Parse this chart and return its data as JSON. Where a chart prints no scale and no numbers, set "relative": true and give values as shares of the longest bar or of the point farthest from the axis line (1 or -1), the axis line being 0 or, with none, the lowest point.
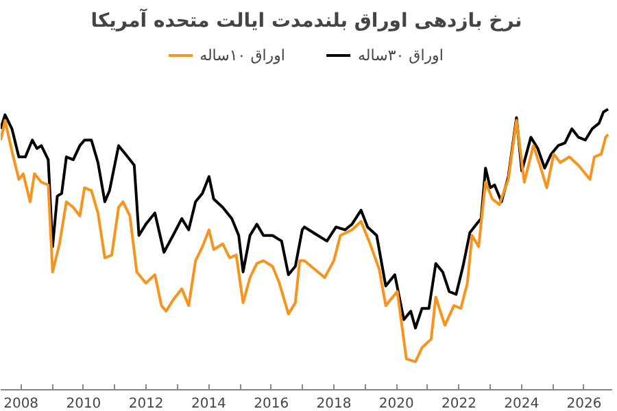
{
  "chart_data": {
    "type": "line",
    "title": "نرخ بازدهی اوراق بلندمدت ایالت متحده آمریکا",
    "relative": true,
    "legend": "top",
    "grid": false,
    "line_style": "solid",
    "xlim": [
      2007.35,
      2026.9
    ],
    "xticks": [
      2008,
      {
        "value": 2009,
        "label": null
      },
      2010,
      {
        "value": 2011,
        "label": null
      },
      2012,
      {
        "value": 2013,
        "label": null
      },
      2014,
      {
        "value": 2015,
        "label": null
      },
      2016,
      {
        "value": 2017,
        "label": null
      },
      2018,
      {
        "value": 2019,
        "label": null
      },
      2020,
      {
        "value": 2021,
        "label": null
      },
      2022,
      {
        "value": 2023,
        "label": null
      },
      2024,
      {
        "value": 2025,
        "label": null
      },
      2026
    ],
    "series": [
      {
        "name": "اوراق ۳۰ساله",
        "color": "#000000",
        "x": [
          2007.35,
          2007.49,
          2007.71,
          2007.93,
          2008.14,
          2008.36,
          2008.51,
          2008.65,
          2008.87,
          2009.01,
          2009.16,
          2009.3,
          2009.45,
          2009.67,
          2009.88,
          2010.03,
          2010.25,
          2010.46,
          2010.68,
          2010.83,
          2011.12,
          2011.41,
          2011.62,
          2011.77,
          2011.99,
          2012.28,
          2012.57,
          2012.86,
          2013.14,
          2013.36,
          2013.58,
          2013.8,
          2014.01,
          2014.16,
          2014.45,
          2014.74,
          2014.96,
          2015.1,
          2015.32,
          2015.54,
          2015.75,
          2016.04,
          2016.33,
          2016.55,
          2016.77,
          2016.99,
          2017.06,
          2017.49,
          2017.78,
          2018.07,
          2018.36,
          2018.58,
          2018.87,
          2019.08,
          2019.37,
          2019.66,
          2019.95,
          2020.24,
          2020.46,
          2020.61,
          2020.82,
          2021.04,
          2021.26,
          2021.48,
          2021.69,
          2021.91,
          2022.13,
          2022.35,
          2022.56,
          2022.71,
          2022.85,
          2023.0,
          2023.14,
          2023.36,
          2023.58,
          2023.84,
          2024.01,
          2024.3,
          2024.52,
          2024.74,
          2024.95,
          2025.17,
          2025.39,
          2025.61,
          2025.82,
          2026.04,
          2026.26,
          2026.48,
          2026.62,
          2026.77
        ],
        "values": [
          0.93,
          0.98,
          0.93,
          0.83,
          0.83,
          0.89,
          0.86,
          0.87,
          0.82,
          0.51,
          0.69,
          0.7,
          0.83,
          0.82,
          0.87,
          0.89,
          0.89,
          0.81,
          0.67,
          0.71,
          0.87,
          0.83,
          0.8,
          0.55,
          0.59,
          0.63,
          0.49,
          0.55,
          0.61,
          0.57,
          0.67,
          0.7,
          0.76,
          0.68,
          0.65,
          0.61,
          0.55,
          0.42,
          0.55,
          0.59,
          0.55,
          0.55,
          0.53,
          0.41,
          0.44,
          0.57,
          0.58,
          0.55,
          0.53,
          0.58,
          0.57,
          0.59,
          0.64,
          0.58,
          0.55,
          0.37,
          0.41,
          0.25,
          0.28,
          0.22,
          0.29,
          0.29,
          0.45,
          0.42,
          0.35,
          0.34,
          0.44,
          0.56,
          0.59,
          0.61,
          0.79,
          0.72,
          0.73,
          0.67,
          0.76,
          0.97,
          0.78,
          0.9,
          0.86,
          0.79,
          0.84,
          0.87,
          0.88,
          0.93,
          0.9,
          0.89,
          0.93,
          0.95,
          0.99,
          1.0
        ]
      },
      {
        "name": "اوراق ۱۰ساله",
        "color": "#f7941d",
        "x": [
          2007.35,
          2007.49,
          2007.71,
          2007.93,
          2008.07,
          2008.29,
          2008.43,
          2008.65,
          2008.87,
          2009.01,
          2009.23,
          2009.45,
          2009.67,
          2009.88,
          2010.03,
          2010.25,
          2010.46,
          2010.68,
          2010.9,
          2011.12,
          2011.26,
          2011.48,
          2011.7,
          2011.99,
          2012.28,
          2012.49,
          2012.64,
          2012.86,
          2013.14,
          2013.36,
          2013.58,
          2013.8,
          2014.01,
          2014.16,
          2014.45,
          2014.67,
          2014.88,
          2015.1,
          2015.32,
          2015.54,
          2015.75,
          2016.04,
          2016.26,
          2016.55,
          2016.77,
          2016.91,
          2017.06,
          2017.49,
          2017.71,
          2018.0,
          2018.21,
          2018.58,
          2018.87,
          2019.16,
          2019.45,
          2019.66,
          2020.03,
          2020.32,
          2020.61,
          2020.82,
          2021.11,
          2021.26,
          2021.55,
          2021.84,
          2022.06,
          2022.27,
          2022.42,
          2022.63,
          2022.85,
          2023.07,
          2023.29,
          2023.58,
          2023.84,
          2024.09,
          2024.38,
          2024.59,
          2024.81,
          2025.03,
          2025.24,
          2025.53,
          2025.82,
          2026.19,
          2026.33,
          2026.55,
          2026.69,
          2026.77
        ],
        "values": [
          0.89,
          0.96,
          0.85,
          0.75,
          0.77,
          0.67,
          0.77,
          0.74,
          0.73,
          0.42,
          0.52,
          0.67,
          0.65,
          0.62,
          0.72,
          0.71,
          0.63,
          0.47,
          0.48,
          0.65,
          0.67,
          0.62,
          0.42,
          0.38,
          0.41,
          0.3,
          0.28,
          0.32,
          0.36,
          0.3,
          0.46,
          0.51,
          0.57,
          0.5,
          0.52,
          0.47,
          0.48,
          0.31,
          0.4,
          0.45,
          0.46,
          0.44,
          0.38,
          0.27,
          0.31,
          0.46,
          0.46,
          0.42,
          0.4,
          0.46,
          0.55,
          0.57,
          0.6,
          0.52,
          0.43,
          0.3,
          0.35,
          0.11,
          0.1,
          0.15,
          0.18,
          0.33,
          0.23,
          0.3,
          0.29,
          0.38,
          0.55,
          0.51,
          0.74,
          0.68,
          0.66,
          0.75,
          0.96,
          0.74,
          0.87,
          0.8,
          0.72,
          0.84,
          0.81,
          0.83,
          0.8,
          0.75,
          0.83,
          0.84,
          0.9,
          0.91
        ]
      }
    ]
  }
}
